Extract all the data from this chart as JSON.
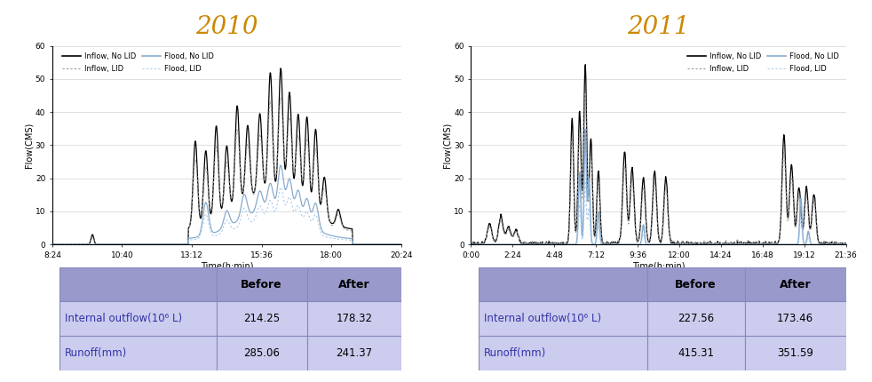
{
  "year2010": {
    "title": "2010",
    "xlabel": "Time(h:min)",
    "ylabel": "Flow(CMS)",
    "ylim": [
      0,
      60
    ],
    "yticks": [
      0,
      10,
      20,
      30,
      40,
      50,
      60
    ],
    "xtick_labels": [
      "8:24",
      "10:40",
      "13:12",
      "15:36",
      "18:00",
      "20:24"
    ],
    "table": {
      "row1_label": "Internal outflow(10⁶ L)",
      "row2_label": "Runoff(mm)",
      "before1": "214.25",
      "after1": "178.32",
      "before2": "285.06",
      "after2": "241.37"
    }
  },
  "year2011": {
    "title": "2011",
    "xlabel": "Time(h:min)",
    "ylabel": "Flow(CMS)",
    "ylim": [
      0,
      60
    ],
    "yticks": [
      0,
      10,
      20,
      30,
      40,
      50,
      60
    ],
    "xtick_labels": [
      "0:00",
      "2:24",
      "4:48",
      "7:12",
      "9:36",
      "12:00",
      "14:24",
      "16:48",
      "19:12",
      "21:36"
    ],
    "table": {
      "row1_label": "Internal outflow(10⁶ L)",
      "row2_label": "Runoff(mm)",
      "before1": "227.56",
      "after1": "173.46",
      "before2": "415.31",
      "after2": "351.59"
    }
  },
  "legend_labels": [
    "Inflow, No LID",
    "Inflow, LID",
    "Flood, No LID",
    "Flood, LID"
  ],
  "colors": {
    "inflow_no_lid": "#000000",
    "inflow_lid": "#999999",
    "flood_no_lid": "#88aacc",
    "flood_lid": "#aaccee",
    "title_color": "#cc8800",
    "table_header_bg": "#9999cc",
    "table_row_bg": "#ccccee",
    "table_border": "#8888bb",
    "table_label_col": "#ddddff"
  }
}
